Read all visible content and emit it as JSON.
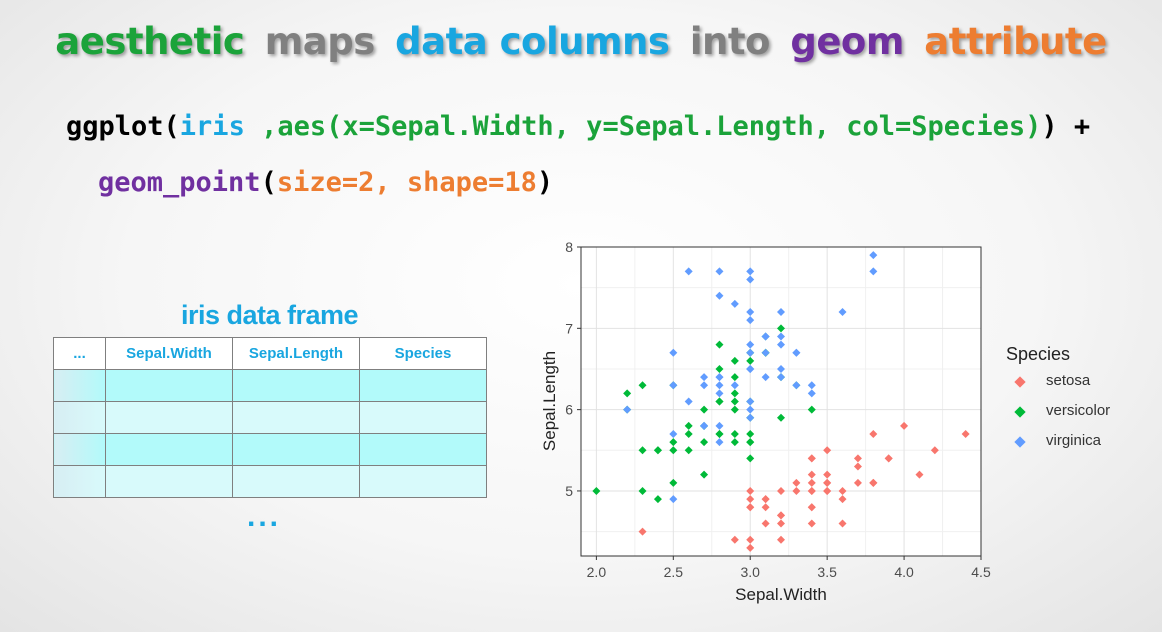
{
  "title": {
    "words": [
      {
        "text": "aesthetic",
        "color": "#1ba33a"
      },
      {
        "text": "maps",
        "color": "#808080"
      },
      {
        "text": "data columns",
        "color": "#19a6e0"
      },
      {
        "text": "into",
        "color": "#808080"
      },
      {
        "text": "geom",
        "color": "#7030a0"
      },
      {
        "text": "attribute",
        "color": "#ed7d31"
      }
    ]
  },
  "code": {
    "line1": [
      {
        "text": "ggplot(",
        "color": "#000000"
      },
      {
        "text": "iris ",
        "color": "#19a6e0"
      },
      {
        "text": ",aes(x=Sepal.Width, y=Sepal.Length, col=Species)",
        "color": "#1ba33a"
      },
      {
        "text": ") +",
        "color": "#000000"
      }
    ],
    "line2": [
      {
        "text": "geom_point",
        "color": "#7030a0"
      },
      {
        "text": "(",
        "color": "#000000"
      },
      {
        "text": "size=2, shape=18",
        "color": "#ed7d31"
      },
      {
        "text": ")",
        "color": "#000000"
      }
    ]
  },
  "table": {
    "title": "iris data frame",
    "title_color": "#19a6e0",
    "headers": [
      "...",
      "Sepal.Width",
      "Sepal.Length",
      "Species"
    ],
    "header_color": "#19a6e0",
    "rows": 4,
    "more": "..."
  },
  "colors": {
    "setosa": "#f8766d",
    "versicolor": "#00ba38",
    "virginica": "#619cff"
  },
  "chart_data": {
    "type": "scatter",
    "xlabel": "Sepal.Width",
    "ylabel": "Sepal.Length",
    "xlim": [
      1.9,
      4.5
    ],
    "ylim": [
      4.2,
      8.0
    ],
    "x_ticks": [
      "2.0",
      "2.5",
      "3.0",
      "3.5",
      "4.0",
      "4.5"
    ],
    "y_ticks": [
      "5",
      "6",
      "7",
      "8"
    ],
    "grid": true,
    "legend_title": "Species",
    "legend_position": "right",
    "series": [
      {
        "name": "setosa",
        "color": "#f8766d",
        "points": [
          [
            3.5,
            5.1
          ],
          [
            3.0,
            4.9
          ],
          [
            3.2,
            4.7
          ],
          [
            3.1,
            4.6
          ],
          [
            3.6,
            5.0
          ],
          [
            3.9,
            5.4
          ],
          [
            3.4,
            4.6
          ],
          [
            3.4,
            5.0
          ],
          [
            2.9,
            4.4
          ],
          [
            3.1,
            4.9
          ],
          [
            3.7,
            5.4
          ],
          [
            3.4,
            4.8
          ],
          [
            3.0,
            4.8
          ],
          [
            3.0,
            4.3
          ],
          [
            4.0,
            5.8
          ],
          [
            4.4,
            5.7
          ],
          [
            3.9,
            5.4
          ],
          [
            3.5,
            5.1
          ],
          [
            3.8,
            5.7
          ],
          [
            3.8,
            5.1
          ],
          [
            3.4,
            5.4
          ],
          [
            3.7,
            5.1
          ],
          [
            3.6,
            4.6
          ],
          [
            3.3,
            5.1
          ],
          [
            3.4,
            4.8
          ],
          [
            3.0,
            5.0
          ],
          [
            3.4,
            5.0
          ],
          [
            3.5,
            5.2
          ],
          [
            3.4,
            5.2
          ],
          [
            3.2,
            4.7
          ],
          [
            3.1,
            4.8
          ],
          [
            3.4,
            5.4
          ],
          [
            4.1,
            5.2
          ],
          [
            4.2,
            5.5
          ],
          [
            3.1,
            4.9
          ],
          [
            3.2,
            5.0
          ],
          [
            3.5,
            5.5
          ],
          [
            3.6,
            4.9
          ],
          [
            3.0,
            4.4
          ],
          [
            3.4,
            5.1
          ],
          [
            3.5,
            5.0
          ],
          [
            2.3,
            4.5
          ],
          [
            3.2,
            4.4
          ],
          [
            3.5,
            5.0
          ],
          [
            3.8,
            5.1
          ],
          [
            3.0,
            4.8
          ],
          [
            3.8,
            5.1
          ],
          [
            3.2,
            4.6
          ],
          [
            3.7,
            5.3
          ],
          [
            3.3,
            5.0
          ]
        ]
      },
      {
        "name": "versicolor",
        "color": "#00ba38",
        "points": [
          [
            3.2,
            7.0
          ],
          [
            3.2,
            6.4
          ],
          [
            3.1,
            6.9
          ],
          [
            2.3,
            5.5
          ],
          [
            2.8,
            6.5
          ],
          [
            2.8,
            5.7
          ],
          [
            3.3,
            6.3
          ],
          [
            2.4,
            4.9
          ],
          [
            2.9,
            6.6
          ],
          [
            2.7,
            5.2
          ],
          [
            2.0,
            5.0
          ],
          [
            3.0,
            5.9
          ],
          [
            2.2,
            6.0
          ],
          [
            2.9,
            6.1
          ],
          [
            2.9,
            5.6
          ],
          [
            3.1,
            6.7
          ],
          [
            3.0,
            5.6
          ],
          [
            2.7,
            5.8
          ],
          [
            2.2,
            6.2
          ],
          [
            2.5,
            5.6
          ],
          [
            3.2,
            5.9
          ],
          [
            2.8,
            6.1
          ],
          [
            2.5,
            6.3
          ],
          [
            2.8,
            6.1
          ],
          [
            2.9,
            6.4
          ],
          [
            3.0,
            6.6
          ],
          [
            2.8,
            6.8
          ],
          [
            3.0,
            6.7
          ],
          [
            2.9,
            6.0
          ],
          [
            2.6,
            5.7
          ],
          [
            2.4,
            5.5
          ],
          [
            2.4,
            5.5
          ],
          [
            2.7,
            5.8
          ],
          [
            2.7,
            6.0
          ],
          [
            3.0,
            5.4
          ],
          [
            3.4,
            6.0
          ],
          [
            3.1,
            6.7
          ],
          [
            2.3,
            6.3
          ],
          [
            3.0,
            5.6
          ],
          [
            2.5,
            5.5
          ],
          [
            2.6,
            5.5
          ],
          [
            3.0,
            6.1
          ],
          [
            2.6,
            5.8
          ],
          [
            2.3,
            5.0
          ],
          [
            2.7,
            5.6
          ],
          [
            3.0,
            5.7
          ],
          [
            2.9,
            5.7
          ],
          [
            2.9,
            6.2
          ],
          [
            2.5,
            5.1
          ],
          [
            2.8,
            5.7
          ]
        ]
      },
      {
        "name": "virginica",
        "color": "#619cff",
        "points": [
          [
            3.3,
            6.3
          ],
          [
            2.7,
            5.8
          ],
          [
            3.0,
            7.1
          ],
          [
            2.9,
            6.3
          ],
          [
            3.0,
            6.5
          ],
          [
            3.0,
            7.6
          ],
          [
            2.5,
            4.9
          ],
          [
            2.9,
            7.3
          ],
          [
            2.5,
            6.7
          ],
          [
            3.6,
            7.2
          ],
          [
            3.2,
            6.5
          ],
          [
            2.7,
            6.4
          ],
          [
            3.0,
            6.8
          ],
          [
            2.5,
            5.7
          ],
          [
            2.8,
            5.8
          ],
          [
            3.2,
            6.4
          ],
          [
            3.0,
            6.5
          ],
          [
            3.8,
            7.7
          ],
          [
            2.6,
            7.7
          ],
          [
            2.2,
            6.0
          ],
          [
            3.2,
            6.9
          ],
          [
            2.8,
            5.6
          ],
          [
            2.8,
            7.7
          ],
          [
            2.7,
            6.3
          ],
          [
            3.3,
            6.7
          ],
          [
            3.2,
            7.2
          ],
          [
            2.8,
            6.2
          ],
          [
            3.0,
            6.1
          ],
          [
            2.8,
            6.4
          ],
          [
            3.0,
            7.2
          ],
          [
            2.8,
            7.4
          ],
          [
            3.8,
            7.9
          ],
          [
            2.8,
            6.4
          ],
          [
            2.8,
            6.3
          ],
          [
            2.6,
            6.1
          ],
          [
            3.0,
            7.7
          ],
          [
            3.4,
            6.3
          ],
          [
            3.1,
            6.4
          ],
          [
            3.0,
            6.0
          ],
          [
            3.1,
            6.9
          ],
          [
            3.1,
            6.7
          ],
          [
            3.1,
            6.9
          ],
          [
            2.7,
            5.8
          ],
          [
            3.2,
            6.8
          ],
          [
            3.3,
            6.7
          ],
          [
            3.0,
            6.7
          ],
          [
            2.5,
            6.3
          ],
          [
            3.0,
            6.5
          ],
          [
            3.4,
            6.2
          ],
          [
            3.0,
            5.9
          ]
        ]
      }
    ]
  }
}
